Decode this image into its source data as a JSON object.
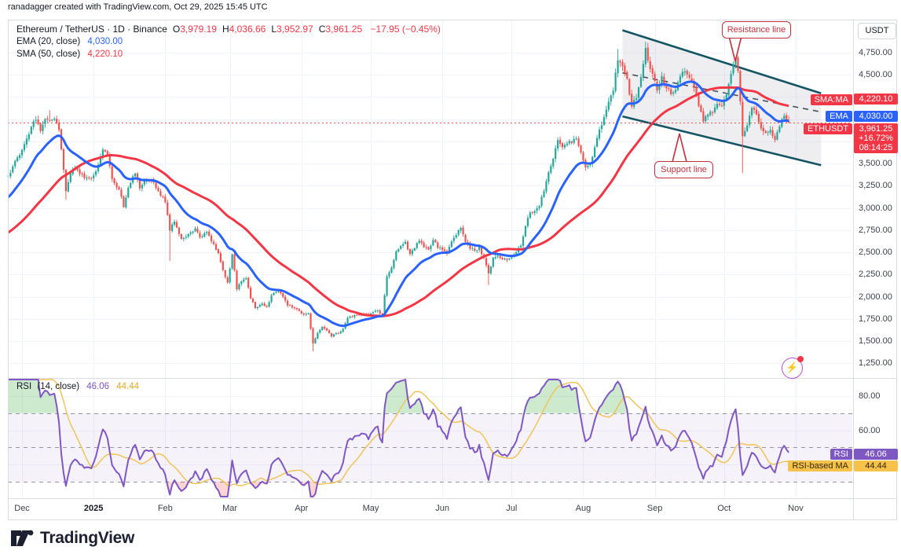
{
  "page": {
    "credit": "ranadagger created with TradingView.com, Oct 29, 2025 15:45 UTC"
  },
  "legend": {
    "symbol": "Ethereum / TetherUS · 1D · Binance",
    "ohlc": [
      {
        "l": "O",
        "v": "3,979.19"
      },
      {
        "l": "H",
        "v": "4,036.66"
      },
      {
        "l": "L",
        "v": "3,952.97"
      },
      {
        "l": "C",
        "v": "3,961.25"
      }
    ],
    "change": "−17.95 (−0.45%)",
    "ema_label": "EMA (20, close)",
    "ema_value": "4,030.00",
    "sma_label": "SMA (50, close)",
    "sma_value": "4,220.10"
  },
  "rsi_legend": {
    "name": "RSI",
    "params": "(14, close)",
    "value": "46.06",
    "ma_value": "44.44"
  },
  "axis": {
    "currency": "USDT",
    "price_ticks": [
      4750,
      4500,
      3500,
      3250,
      3000,
      2750,
      2500,
      2250,
      2000,
      1750,
      1500,
      1250
    ],
    "rsi_ticks": [
      80,
      60
    ],
    "months": [
      {
        "t": 6,
        "label": "Dec"
      },
      {
        "t": 37,
        "label": "2025",
        "bold": true
      },
      {
        "t": 68,
        "label": "Feb"
      },
      {
        "t": 96,
        "label": "Mar"
      },
      {
        "t": 127,
        "label": "Apr"
      },
      {
        "t": 157,
        "label": "May"
      },
      {
        "t": 188,
        "label": "Jun"
      },
      {
        "t": 218,
        "label": "Jul"
      },
      {
        "t": 249,
        "label": "Aug"
      },
      {
        "t": 280,
        "label": "Sep"
      },
      {
        "t": 310,
        "label": "Oct"
      },
      {
        "t": 341,
        "label": "Nov"
      }
    ]
  },
  "badges": {
    "price": [
      {
        "label": "SMA:MA",
        "value": "4,220.10",
        "price": 4220.1,
        "bg": "#f23645",
        "fg": "#ffffff"
      },
      {
        "label": "EMA",
        "value": "4,030.00",
        "price": 4030.0,
        "bg": "#2962ff",
        "fg": "#ffffff"
      },
      {
        "label": "ETHUSDT",
        "value": "3,961.25",
        "price": 3961.25,
        "bg": "#f23645",
        "fg": "#ffffff",
        "sub": [
          "+16.72%",
          "08:14:25"
        ]
      }
    ],
    "rsi": [
      {
        "label": "RSI",
        "value": "46.06",
        "rsi": 46.06,
        "bg": "#7e57c2",
        "fg": "#ffffff"
      },
      {
        "label": "RSI-based MA",
        "value": "44.44",
        "rsi": 44.44,
        "bg": "#f6c24a",
        "fg": "#33270a"
      }
    ]
  },
  "annotations": {
    "resistance": "Resistance line",
    "support": "Support line"
  },
  "footer": {
    "logo_text": "TradingView"
  },
  "icons": {
    "flash": "⚡"
  },
  "colors": {
    "up": "#26a69a",
    "down": "#ef5350",
    "ema": "#2962ff",
    "sma": "#f23645",
    "rsi": "#7e57c2",
    "rsi_ma": "#f0c35b",
    "channel": "#155463",
    "grid": "#f0f3fa",
    "border": "#d8dbe0",
    "price_line": "#ef5350",
    "callout": "#c0313c",
    "band": "rgba(126,87,194,0.08)"
  },
  "chart_data": {
    "type": "candlestick",
    "symbol": "ETHUSDT",
    "timeframe": "1D",
    "exchange": "Binance",
    "x_start": "2024-11-25",
    "x_end": "2025-11-25",
    "last_bar_day": 338,
    "last_ohlc": {
      "o": 3979.19,
      "h": 4036.66,
      "l": 3952.97,
      "c": 3961.25
    },
    "current_price": 3961.25,
    "price_ylim": [
      1083,
      5120
    ],
    "rsi_ylim": [
      20,
      90.6
    ],
    "rsi_levels": {
      "upper": 70,
      "middle": 50,
      "lower": 30
    },
    "indicators": [
      {
        "name": "EMA",
        "length": 20,
        "source": "close",
        "last": 4030.0
      },
      {
        "name": "SMA",
        "length": 50,
        "source": "close",
        "last": 4220.1
      },
      {
        "name": "RSI",
        "length": 14,
        "source": "close",
        "last": 46.06
      },
      {
        "name": "RSI-based MA",
        "length": 14,
        "last": 44.44
      }
    ],
    "close_anchors": [
      [
        -50,
        2480
      ],
      [
        -42,
        2440
      ],
      [
        -34,
        2510
      ],
      [
        -26,
        2460
      ],
      [
        -19,
        2560
      ],
      [
        -15,
        2780
      ],
      [
        -12,
        3050
      ],
      [
        -9,
        3220
      ],
      [
        -6,
        3310
      ],
      [
        -3,
        3350
      ],
      [
        0,
        3360
      ],
      [
        3,
        3520
      ],
      [
        6,
        3640
      ],
      [
        8,
        3770
      ],
      [
        10,
        3930
      ],
      [
        12,
        3990
      ],
      [
        14,
        3880
      ],
      [
        16,
        4000
      ],
      [
        18,
        3960
      ],
      [
        20,
        4010
      ],
      [
        22,
        3890
      ],
      [
        24,
        3420
      ],
      [
        25,
        3180
      ],
      [
        27,
        3400
      ],
      [
        29,
        3460
      ],
      [
        32,
        3360
      ],
      [
        35,
        3340
      ],
      [
        37,
        3350
      ],
      [
        41,
        3660
      ],
      [
        43,
        3610
      ],
      [
        45,
        3310
      ],
      [
        48,
        3200
      ],
      [
        50,
        3020
      ],
      [
        52,
        3230
      ],
      [
        55,
        3400
      ],
      [
        57,
        3230
      ],
      [
        59,
        3300
      ],
      [
        62,
        3320
      ],
      [
        64,
        3240
      ],
      [
        66,
        3140
      ],
      [
        68,
        3080
      ],
      [
        70,
        2740
      ],
      [
        72,
        2860
      ],
      [
        75,
        2640
      ],
      [
        78,
        2710
      ],
      [
        81,
        2760
      ],
      [
        83,
        2660
      ],
      [
        86,
        2720
      ],
      [
        88,
        2630
      ],
      [
        91,
        2480
      ],
      [
        93,
        2290
      ],
      [
        95,
        2170
      ],
      [
        97,
        2480
      ],
      [
        99,
        2090
      ],
      [
        101,
        2180
      ],
      [
        103,
        2220
      ],
      [
        105,
        1990
      ],
      [
        107,
        1880
      ],
      [
        110,
        1920
      ],
      [
        112,
        1880
      ],
      [
        114,
        2010
      ],
      [
        117,
        2070
      ],
      [
        119,
        1990
      ],
      [
        121,
        1910
      ],
      [
        124,
        1870
      ],
      [
        126,
        1830
      ],
      [
        128,
        1800
      ],
      [
        130,
        1810
      ],
      [
        132,
        1470
      ],
      [
        134,
        1590
      ],
      [
        136,
        1660
      ],
      [
        138,
        1620
      ],
      [
        140,
        1560
      ],
      [
        143,
        1590
      ],
      [
        145,
        1640
      ],
      [
        147,
        1760
      ],
      [
        150,
        1790
      ],
      [
        153,
        1810
      ],
      [
        156,
        1790
      ],
      [
        158,
        1820
      ],
      [
        160,
        1840
      ],
      [
        162,
        1800
      ],
      [
        164,
        2220
      ],
      [
        166,
        2340
      ],
      [
        168,
        2500
      ],
      [
        170,
        2560
      ],
      [
        172,
        2610
      ],
      [
        174,
        2470
      ],
      [
        176,
        2550
      ],
      [
        178,
        2640
      ],
      [
        180,
        2570
      ],
      [
        182,
        2520
      ],
      [
        184,
        2640
      ],
      [
        186,
        2560
      ],
      [
        188,
        2530
      ],
      [
        190,
        2500
      ],
      [
        192,
        2610
      ],
      [
        194,
        2700
      ],
      [
        196,
        2790
      ],
      [
        198,
        2630
      ],
      [
        200,
        2550
      ],
      [
        202,
        2520
      ],
      [
        204,
        2550
      ],
      [
        206,
        2430
      ],
      [
        208,
        2260
      ],
      [
        210,
        2430
      ],
      [
        212,
        2450
      ],
      [
        214,
        2430
      ],
      [
        216,
        2420
      ],
      [
        218,
        2460
      ],
      [
        220,
        2510
      ],
      [
        222,
        2570
      ],
      [
        224,
        2780
      ],
      [
        226,
        2960
      ],
      [
        228,
        2950
      ],
      [
        230,
        3020
      ],
      [
        232,
        3200
      ],
      [
        234,
        3390
      ],
      [
        236,
        3560
      ],
      [
        238,
        3760
      ],
      [
        240,
        3680
      ],
      [
        242,
        3730
      ],
      [
        244,
        3750
      ],
      [
        246,
        3780
      ],
      [
        248,
        3640
      ],
      [
        250,
        3440
      ],
      [
        252,
        3490
      ],
      [
        254,
        3680
      ],
      [
        256,
        3880
      ],
      [
        258,
        4010
      ],
      [
        260,
        4190
      ],
      [
        262,
        4320
      ],
      [
        264,
        4680
      ],
      [
        266,
        4570
      ],
      [
        268,
        4440
      ],
      [
        270,
        4140
      ],
      [
        272,
        4260
      ],
      [
        274,
        4490
      ],
      [
        276,
        4780
      ],
      [
        278,
        4580
      ],
      [
        280,
        4410
      ],
      [
        281,
        4320
      ],
      [
        283,
        4460
      ],
      [
        285,
        4340
      ],
      [
        287,
        4300
      ],
      [
        289,
        4330
      ],
      [
        291,
        4490
      ],
      [
        293,
        4560
      ],
      [
        295,
        4470
      ],
      [
        297,
        4340
      ],
      [
        299,
        4170
      ],
      [
        301,
        3980
      ],
      [
        303,
        4060
      ],
      [
        305,
        4090
      ],
      [
        307,
        4170
      ],
      [
        309,
        4130
      ],
      [
        311,
        4260
      ],
      [
        313,
        4490
      ],
      [
        315,
        4700
      ],
      [
        316,
        4560
      ],
      [
        318,
        3820
      ],
      [
        320,
        3940
      ],
      [
        322,
        4140
      ],
      [
        324,
        4060
      ],
      [
        326,
        3910
      ],
      [
        328,
        3840
      ],
      [
        330,
        3880
      ],
      [
        332,
        3770
      ],
      [
        334,
        3930
      ],
      [
        336,
        4040
      ],
      [
        338,
        3961.25
      ]
    ],
    "wick_lows": [
      [
        25,
        3090
      ],
      [
        70,
        2400
      ],
      [
        132,
        1385
      ],
      [
        208,
        2130
      ],
      [
        318,
        3390
      ]
    ],
    "wick_highs": [
      [
        18,
        4100
      ],
      [
        264,
        4790
      ],
      [
        276,
        4870
      ],
      [
        315,
        4760
      ]
    ],
    "channel": {
      "resistance": {
        "t": [
          266,
          352
        ],
        "p": [
          5000,
          4290
        ]
      },
      "support": {
        "t": [
          266,
          352
        ],
        "p": [
          4030,
          3480
        ]
      },
      "midline": {
        "t": [
          266,
          352
        ],
        "p": [
          4520,
          4080
        ]
      }
    }
  }
}
